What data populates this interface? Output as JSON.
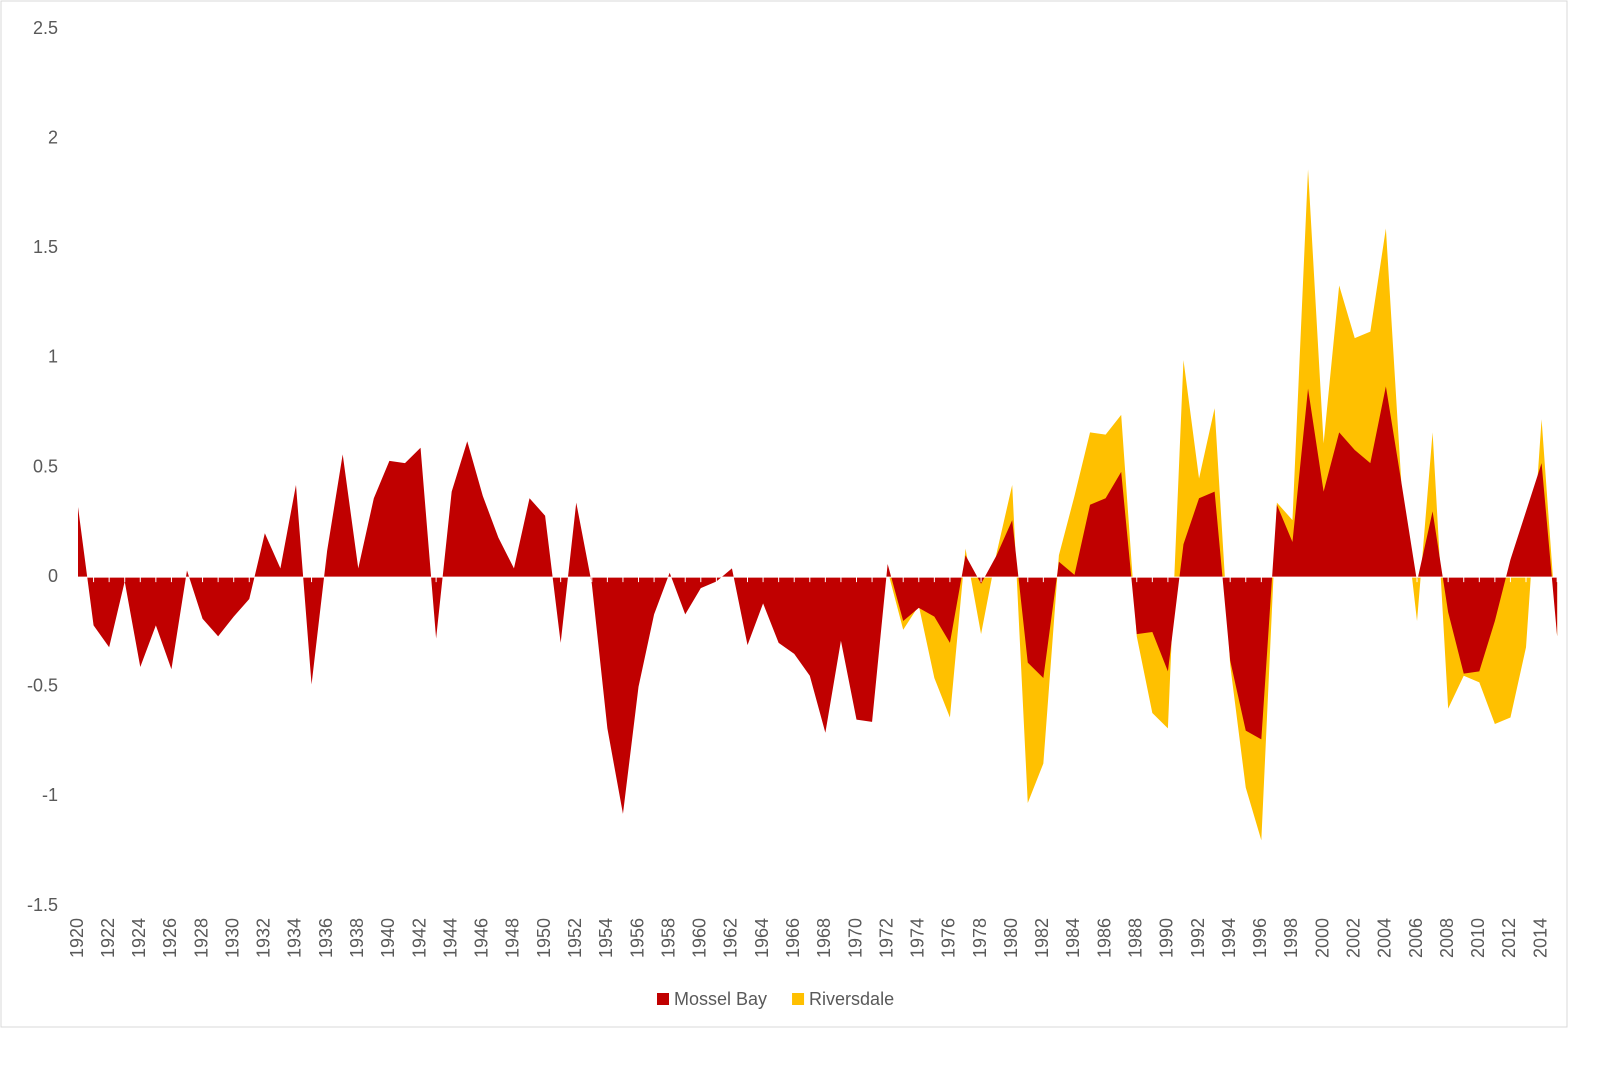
{
  "chart_data": {
    "type": "area",
    "categories": [
      "1920",
      null,
      "1922",
      null,
      "1924",
      null,
      "1926",
      null,
      "1928",
      null,
      "1930",
      null,
      "1932",
      null,
      "1934",
      null,
      "1936",
      null,
      "1938",
      null,
      "1940",
      null,
      "1942",
      null,
      "1944",
      null,
      "1946",
      null,
      "1948",
      null,
      "1950",
      null,
      "1952",
      null,
      "1954",
      null,
      "1956",
      null,
      "1958",
      null,
      "1960",
      null,
      "1962",
      null,
      "1964",
      null,
      "1966",
      null,
      "1968",
      null,
      "1970",
      null,
      "1972",
      null,
      "1974",
      null,
      "1976",
      null,
      "1978",
      null,
      "1980",
      null,
      "1982",
      null,
      "1984",
      null,
      "1986",
      null,
      "1988",
      null,
      "1990",
      null,
      "1992",
      null,
      "1994",
      null,
      "1996",
      null,
      "1998",
      null,
      "2000",
      null,
      "2002",
      null,
      "2004",
      null,
      "2006",
      null,
      "2008",
      null,
      "2010",
      null,
      "2012",
      null,
      "2014",
      null
    ],
    "series": [
      {
        "name": "Mossel Bay",
        "color": "#c00000",
        "values": [
          0.32,
          -0.22,
          -0.32,
          -0.02,
          -0.41,
          -0.22,
          -0.42,
          0.03,
          -0.19,
          -0.27,
          -0.18,
          -0.1,
          0.2,
          0.04,
          0.42,
          -0.49,
          0.12,
          0.56,
          0.04,
          0.36,
          0.53,
          0.52,
          0.59,
          -0.28,
          0.39,
          0.62,
          0.37,
          0.18,
          0.04,
          0.36,
          0.28,
          -0.3,
          0.34,
          -0.03,
          -0.69,
          -1.08,
          -0.5,
          -0.17,
          0.02,
          -0.17,
          -0.05,
          -0.02,
          0.04,
          -0.31,
          -0.12,
          -0.3,
          -0.35,
          -0.45,
          -0.71,
          -0.29,
          -0.65,
          -0.66,
          0.06,
          -0.2,
          -0.14,
          -0.18,
          -0.3,
          0.1,
          -0.03,
          0.1,
          0.26,
          -0.39,
          -0.46,
          0.07,
          0.01,
          0.33,
          0.36,
          0.48,
          -0.26,
          -0.25,
          -0.43,
          0.15,
          0.36,
          0.39,
          -0.38,
          -0.7,
          -0.74,
          0.33,
          0.16,
          0.86,
          0.39,
          0.66,
          0.58,
          0.52,
          0.87,
          0.43,
          -0.02,
          0.3,
          -0.16,
          -0.44,
          -0.43,
          -0.2,
          0.08,
          0.3,
          0.52,
          -0.27
        ]
      },
      {
        "name": "Riversdale",
        "color": "#ffc000",
        "values": [
          null,
          null,
          null,
          null,
          null,
          null,
          null,
          null,
          null,
          null,
          null,
          null,
          null,
          null,
          null,
          null,
          null,
          null,
          null,
          null,
          null,
          null,
          null,
          null,
          null,
          null,
          null,
          null,
          null,
          null,
          null,
          null,
          null,
          null,
          null,
          null,
          null,
          null,
          null,
          null,
          null,
          null,
          null,
          null,
          null,
          null,
          null,
          null,
          null,
          null,
          null,
          null,
          0.03,
          -0.24,
          -0.13,
          -0.46,
          -0.64,
          0.13,
          -0.26,
          0.11,
          0.42,
          -1.03,
          -0.85,
          0.1,
          0.37,
          0.66,
          0.65,
          0.74,
          -0.27,
          -0.62,
          -0.69,
          0.99,
          0.45,
          0.77,
          -0.4,
          -0.96,
          -1.2,
          0.34,
          0.26,
          1.86,
          0.61,
          1.33,
          1.09,
          1.12,
          1.59,
          0.42,
          -0.2,
          0.66,
          -0.6,
          -0.45,
          -0.48,
          -0.67,
          -0.64,
          -0.32,
          0.72,
          -0.27
        ]
      }
    ],
    "ylim": [
      -1.5,
      2.5
    ],
    "yticks": [
      -1.5,
      -1,
      -0.5,
      0,
      0.5,
      1,
      1.5,
      2,
      2.5
    ],
    "grid": false,
    "legend": "bottom"
  }
}
